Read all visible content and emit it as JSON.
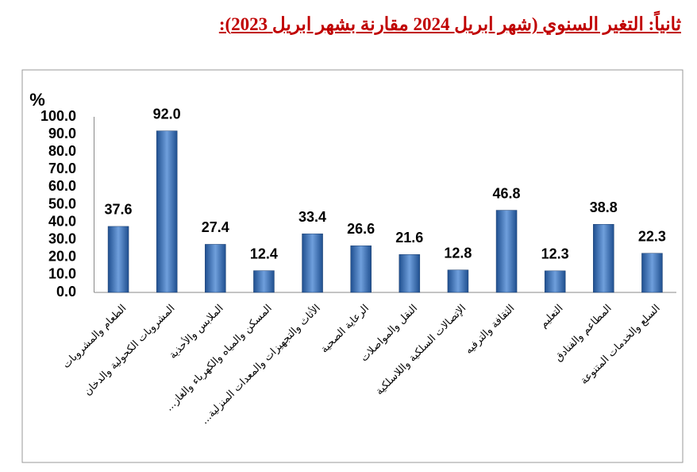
{
  "chart_data": {
    "type": "bar",
    "title": "ثانياً: التغير السنوي (شهر ابريل 2024 مقارنة بشهر ابريل 2023):",
    "y_label": "%",
    "categories": [
      "الطعام والمشروبات",
      "المشروبات الكحولية والدخان",
      "الملابس والأحذية",
      "المسكن والمياه والكهرباء والغاز...",
      "الأثاث والتجهيزات والمعدات المنزلية...",
      "الرعاية الصحية",
      "النقل والمواصلات",
      "الإتصالات السلكية واللاسلكية",
      "الثقافة والترفيه",
      "التعليم",
      "المطاعم والفنادق",
      "السلع والخدمات المتنوعة"
    ],
    "values": [
      37.6,
      92,
      27.4,
      12.4,
      33.4,
      26.6,
      21.6,
      12.8,
      46.8,
      12.3,
      38.8,
      22.3
    ],
    "value_labels": [
      "37.6",
      "92.0",
      "27.4",
      "12.4",
      "33.4",
      "26.6",
      "21.6",
      "12.8",
      "46.8",
      "12.3",
      "38.8",
      "22.3"
    ],
    "color": "#3a6eb0",
    "ylim": [
      0,
      100
    ],
    "yticks": [
      {
        "value": 0,
        "label": "0.0"
      },
      {
        "value": 10,
        "label": "10.0"
      },
      {
        "value": 20,
        "label": "20.0"
      },
      {
        "value": 30,
        "label": "30.0"
      },
      {
        "value": 40,
        "label": "40.0"
      },
      {
        "value": 50,
        "label": "50.0"
      },
      {
        "value": 60,
        "label": "60.0"
      },
      {
        "value": 70,
        "label": "70.0"
      },
      {
        "value": 80,
        "label": "80.0"
      },
      {
        "value": 90,
        "label": "90.0"
      },
      {
        "value": 100,
        "label": "100.0"
      }
    ],
    "grid": false
  }
}
